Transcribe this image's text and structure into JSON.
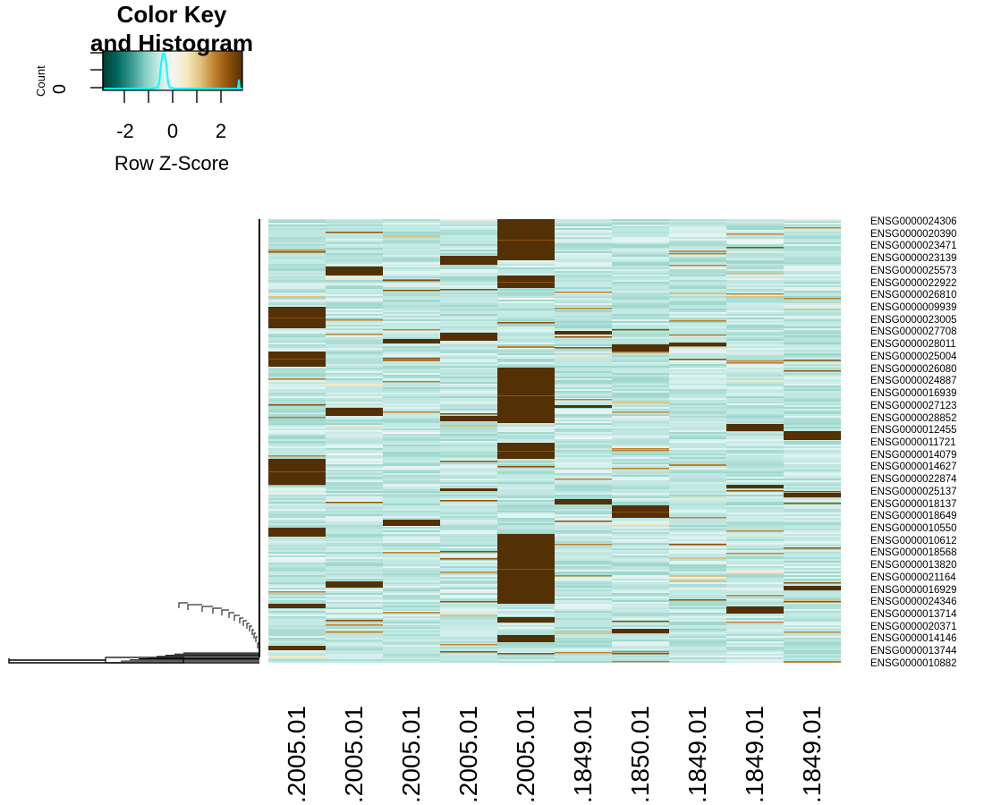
{
  "color_key": {
    "title_line1": "Color Key",
    "title_line2": "and Histogram",
    "count_label": "Count",
    "zero_label": "0",
    "ticks": [
      "-2",
      "0",
      "2"
    ],
    "xlabel": "Row Z-Score",
    "colors": [
      "#003c30",
      "#01665e",
      "#35978f",
      "#80cdc1",
      "#c7eae5",
      "#f5f5f5",
      "#f6e8c3",
      "#dfc27d",
      "#bf812d",
      "#8c510a",
      "#543005"
    ],
    "hist_color": "#00ffff"
  },
  "chart_data": {
    "type": "heatmap",
    "title": "",
    "row_labels": [
      "ENSG0000024306",
      "ENSG0000020390",
      "ENSG0000023471",
      "ENSG0000023139",
      "ENSG0000025573",
      "ENSG0000022922",
      "ENSG0000026810",
      "ENSG0000009939",
      "ENSG0000023005",
      "ENSG0000027708",
      "ENSG0000028011",
      "ENSG0000025004",
      "ENSG0000026080",
      "ENSG0000024887",
      "ENSG0000016939",
      "ENSG0000027123",
      "ENSG0000028852",
      "ENSG0000012455",
      "ENSG0000011721",
      "ENSG0000014079",
      "ENSG0000014627",
      "ENSG0000022874",
      "ENSG0000025137",
      "ENSG0000018137",
      "ENSG0000018649",
      "ENSG0000010550",
      "ENSG0000010612",
      "ENSG0000018568",
      "ENSG0000013820",
      "ENSG0000021164",
      "ENSG0000016929",
      "ENSG0000024346",
      "ENSG0000013714",
      "ENSG0000020371",
      "ENSG0000014146",
      "ENSG0000013744",
      "ENSG0000010882"
    ],
    "col_labels": [
      ".2005.01",
      ".2005.01",
      ".2005.01",
      ".2005.01",
      ".2005.01",
      ".1849.01",
      ".1850.01",
      ".1849.01",
      ".1849.01",
      ".1849.01"
    ],
    "scale": "row z-score",
    "zlim": [
      -3,
      3
    ],
    "high_blocks": [
      {
        "col": 0,
        "rows": [
          [
            98,
            122
          ],
          [
            148,
            165
          ],
          [
            268,
            297
          ],
          [
            345,
            355
          ],
          [
            430,
            435
          ],
          [
            477,
            482
          ]
        ]
      },
      {
        "col": 1,
        "rows": [
          [
            53,
            63
          ],
          [
            211,
            220
          ],
          [
            405,
            412
          ]
        ]
      },
      {
        "col": 2,
        "rows": [
          [
            134,
            139
          ],
          [
            336,
            343
          ]
        ]
      },
      {
        "col": 3,
        "rows": [
          [
            41,
            51
          ],
          [
            127,
            136
          ],
          [
            220,
            226
          ],
          [
            301,
            304
          ]
        ]
      },
      {
        "col": 4,
        "rows": [
          [
            0,
            46
          ],
          [
            63,
            77
          ],
          [
            166,
            228
          ],
          [
            250,
            268
          ],
          [
            352,
            430
          ],
          [
            421,
            430
          ],
          [
            445,
            451
          ],
          [
            465,
            473
          ]
        ]
      },
      {
        "col": 5,
        "rows": [
          [
            125,
            129
          ],
          [
            208,
            211
          ],
          [
            313,
            319
          ]
        ]
      },
      {
        "col": 6,
        "rows": [
          [
            140,
            148
          ],
          [
            320,
            334
          ],
          [
            458,
            463
          ]
        ]
      },
      {
        "col": 7,
        "rows": [
          [
            138,
            142
          ]
        ]
      },
      {
        "col": 8,
        "rows": [
          [
            229,
            237
          ],
          [
            297,
            301
          ],
          [
            433,
            441
          ]
        ]
      },
      {
        "col": 9,
        "rows": [
          [
            237,
            247
          ],
          [
            306,
            311
          ],
          [
            410,
            415
          ]
        ]
      }
    ]
  }
}
